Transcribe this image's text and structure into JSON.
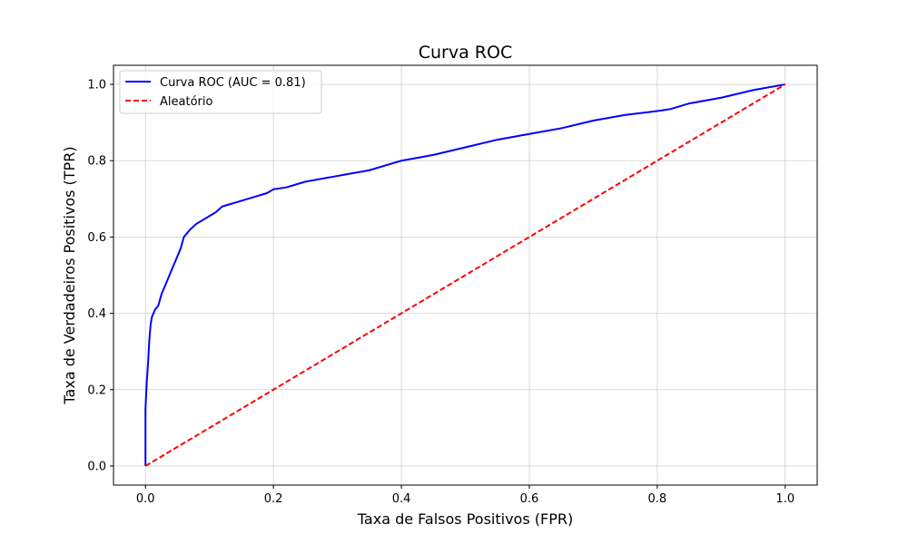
{
  "chart_data": {
    "type": "line",
    "title": "Curva ROC",
    "xlabel": "Taxa de Falsos Positivos (FPR)",
    "ylabel": "Taxa de Verdadeiros Positivos (TPR)",
    "xlim": [
      -0.05,
      1.05
    ],
    "ylim": [
      -0.05,
      1.05
    ],
    "xticks": [
      0.0,
      0.2,
      0.4,
      0.6,
      0.8,
      1.0
    ],
    "yticks": [
      0.0,
      0.2,
      0.4,
      0.6,
      0.8,
      1.0
    ],
    "xtick_labels": [
      "0.0",
      "0.2",
      "0.4",
      "0.6",
      "0.8",
      "1.0"
    ],
    "ytick_labels": [
      "0.0",
      "0.2",
      "0.4",
      "0.6",
      "0.8",
      "1.0"
    ],
    "grid": true,
    "legend_position": "top-left",
    "series": [
      {
        "name": "Curva ROC (AUC = 0.81)",
        "color": "#0000ff",
        "style": "solid",
        "x": [
          0.0,
          0.0,
          0.002,
          0.004,
          0.006,
          0.008,
          0.01,
          0.015,
          0.02,
          0.025,
          0.03,
          0.035,
          0.04,
          0.045,
          0.05,
          0.055,
          0.06,
          0.065,
          0.07,
          0.08,
          0.09,
          0.1,
          0.11,
          0.12,
          0.13,
          0.14,
          0.15,
          0.17,
          0.19,
          0.2,
          0.22,
          0.25,
          0.3,
          0.35,
          0.38,
          0.4,
          0.45,
          0.5,
          0.55,
          0.6,
          0.65,
          0.7,
          0.75,
          0.8,
          0.82,
          0.85,
          0.9,
          0.95,
          1.0
        ],
        "y": [
          0.0,
          0.15,
          0.22,
          0.27,
          0.33,
          0.37,
          0.39,
          0.41,
          0.42,
          0.45,
          0.47,
          0.49,
          0.51,
          0.53,
          0.55,
          0.57,
          0.6,
          0.61,
          0.62,
          0.635,
          0.645,
          0.655,
          0.665,
          0.68,
          0.685,
          0.69,
          0.695,
          0.705,
          0.715,
          0.725,
          0.73,
          0.745,
          0.76,
          0.775,
          0.79,
          0.8,
          0.815,
          0.835,
          0.855,
          0.87,
          0.885,
          0.905,
          0.92,
          0.93,
          0.935,
          0.95,
          0.965,
          0.985,
          1.0
        ]
      },
      {
        "name": "Aleatório",
        "color": "#ff0000",
        "style": "dashed",
        "x": [
          0.0,
          1.0
        ],
        "y": [
          0.0,
          1.0
        ]
      }
    ]
  }
}
